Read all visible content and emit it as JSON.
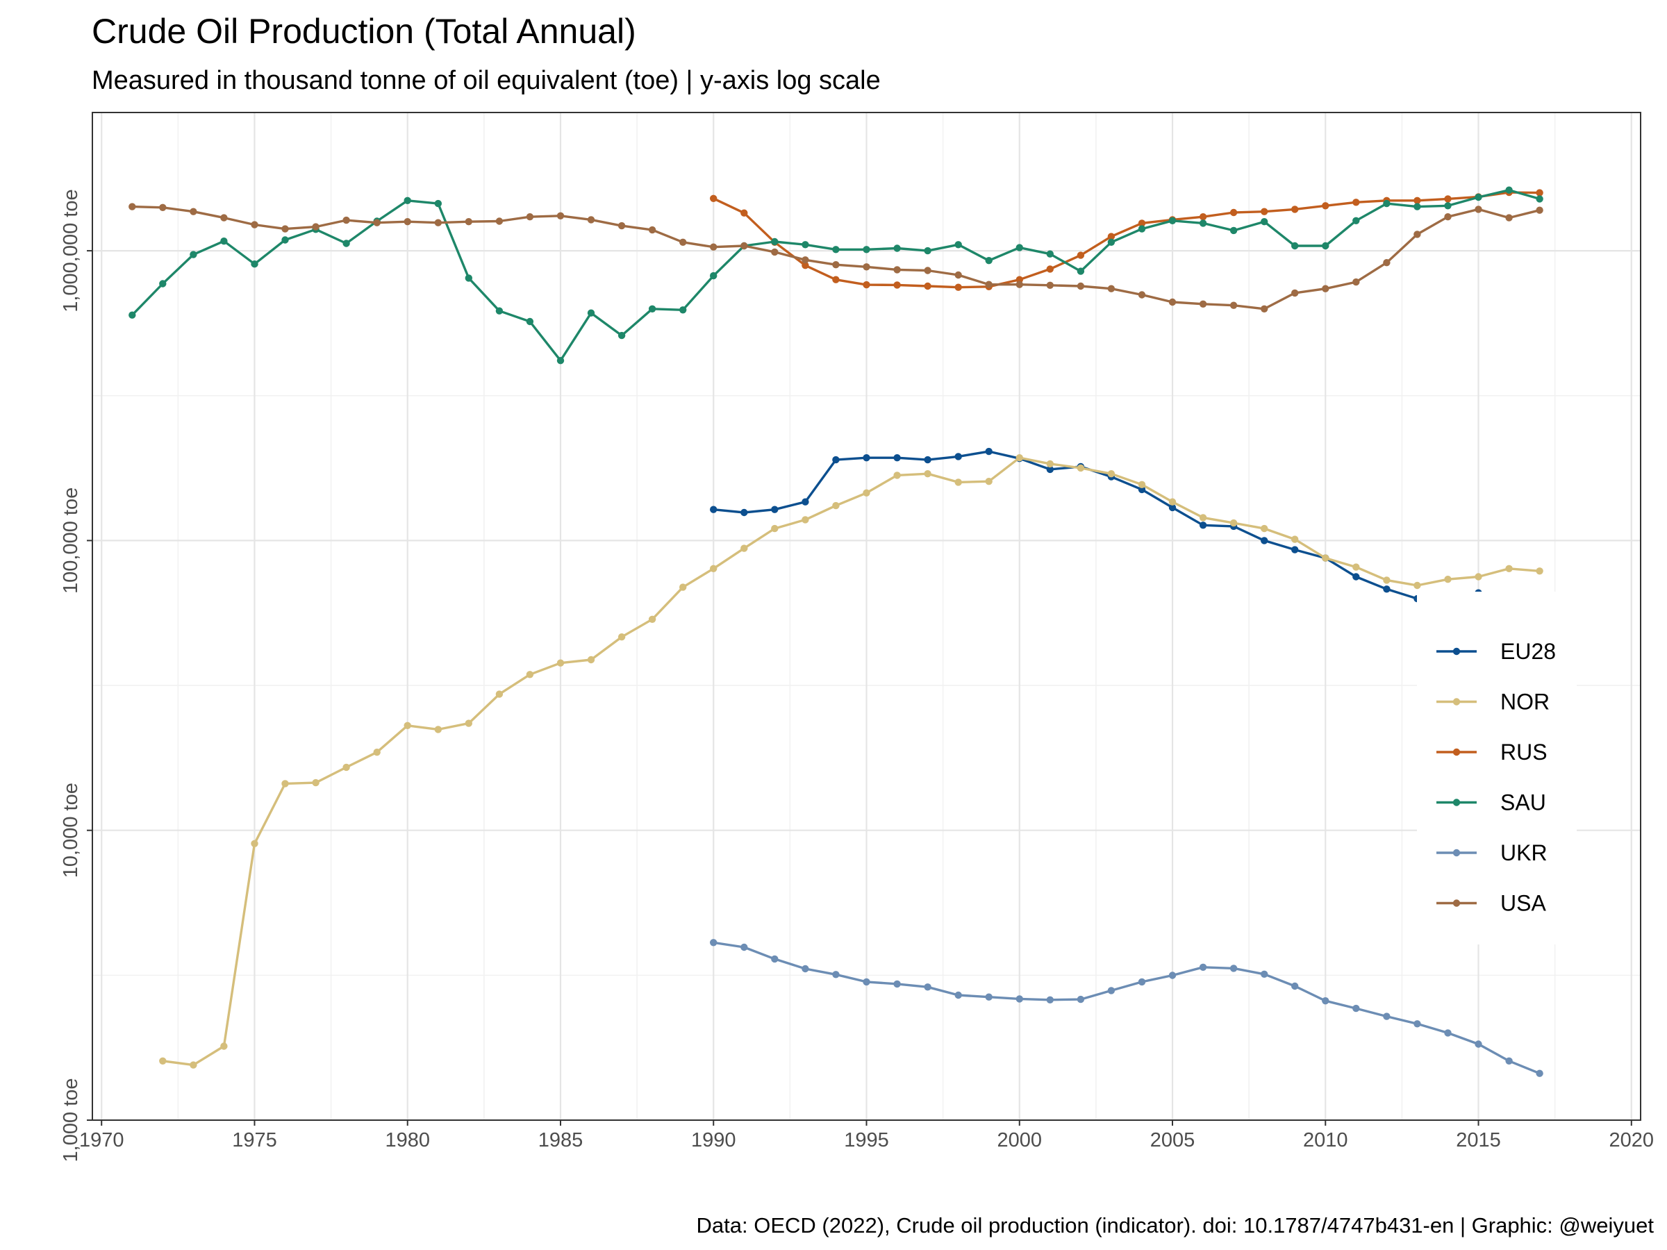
{
  "chart_data": {
    "type": "line",
    "title": "Crude Oil Production (Total Annual)",
    "subtitle": "Measured in thousand tonne of oil equivalent (toe) | y-axis log scale",
    "caption": "Data: OECD (2022), Crude oil production (indicator). doi: 10.1787/4747b431-en | Graphic: @weiyuet",
    "xlabel": "",
    "ylabel": "",
    "y_scale": "log10",
    "xlim": [
      1969.7,
      2020.3
    ],
    "ylim": [
      1000,
      3000000
    ],
    "x_ticks": [
      1970,
      1975,
      1980,
      1985,
      1990,
      1995,
      2000,
      2005,
      2010,
      2015,
      2020
    ],
    "x_tick_labels": [
      "1970",
      "1975",
      "1980",
      "1985",
      "1990",
      "1995",
      "2000",
      "2005",
      "2010",
      "2015",
      "2020"
    ],
    "y_ticks": [
      1000,
      10000,
      100000,
      1000000
    ],
    "y_tick_labels": [
      "1,000 toe",
      "10,000 toe",
      "100,000 toe",
      "1,000,000 toe"
    ],
    "grid": true,
    "legend_position": "right",
    "series": [
      {
        "name": "EU28",
        "color": "#0c4f8f",
        "x": [
          1990,
          1991,
          1992,
          1993,
          1994,
          1995,
          1996,
          1997,
          1998,
          1999,
          2000,
          2001,
          2002,
          2003,
          2004,
          2005,
          2006,
          2007,
          2008,
          2009,
          2010,
          2011,
          2012,
          2013,
          2014,
          2015,
          2016,
          2017
        ],
        "y": [
          128000,
          125000,
          128000,
          136000,
          190000,
          193000,
          193000,
          190000,
          195000,
          203000,
          192000,
          176000,
          180000,
          166000,
          150000,
          130000,
          113000,
          112000,
          100000,
          93000,
          87000,
          75000,
          68000,
          63000,
          62000,
          66000,
          64000,
          62500
        ]
      },
      {
        "name": "NOR",
        "color": "#d5be7b",
        "x": [
          1972,
          1973,
          1974,
          1975,
          1976,
          1977,
          1978,
          1979,
          1980,
          1981,
          1982,
          1983,
          1984,
          1985,
          1986,
          1987,
          1988,
          1989,
          1990,
          1991,
          1992,
          1993,
          1994,
          1995,
          1996,
          1997,
          1998,
          1999,
          2000,
          2001,
          2002,
          2003,
          2004,
          2005,
          2006,
          2007,
          2008,
          2009,
          2010,
          2011,
          2012,
          2013,
          2014,
          2015,
          2016,
          2017
        ],
        "y": [
          1600,
          1550,
          1800,
          9000,
          14500,
          14600,
          16500,
          18600,
          23000,
          22300,
          23400,
          29500,
          34500,
          37800,
          38800,
          46500,
          53500,
          69000,
          80000,
          94000,
          110000,
          118000,
          132000,
          146000,
          168000,
          170000,
          159000,
          160000,
          193000,
          184000,
          178000,
          170000,
          156000,
          136000,
          120000,
          115000,
          110000,
          101000,
          87000,
          81000,
          73000,
          70000,
          73500,
          75000,
          80000,
          78500
        ]
      },
      {
        "name": "RUS",
        "color": "#c25e1e",
        "x": [
          1990,
          1991,
          1992,
          1993,
          1994,
          1995,
          1996,
          1997,
          1998,
          1999,
          2000,
          2001,
          2002,
          2003,
          2004,
          2005,
          2006,
          2007,
          2008,
          2009,
          2010,
          2011,
          2012,
          2013,
          2014,
          2015,
          2016,
          2017
        ],
        "y": [
          1515000,
          1350000,
          1070000,
          890000,
          795000,
          763000,
          762000,
          755000,
          748000,
          752000,
          795000,
          865000,
          965000,
          1120000,
          1245000,
          1280000,
          1310000,
          1355000,
          1365000,
          1390000,
          1430000,
          1470000,
          1490000,
          1490000,
          1510000,
          1535000,
          1590000,
          1585000
        ]
      },
      {
        "name": "SAU",
        "color": "#1e8769",
        "x": [
          1971,
          1972,
          1973,
          1974,
          1975,
          1976,
          1977,
          1978,
          1979,
          1980,
          1981,
          1982,
          1983,
          1984,
          1985,
          1986,
          1987,
          1988,
          1989,
          1990,
          1991,
          1992,
          1993,
          1994,
          1995,
          1996,
          1997,
          1998,
          1999,
          2000,
          2001,
          2002,
          2003,
          2004,
          2005,
          2006,
          2007,
          2008,
          2009,
          2010,
          2011,
          2012,
          2013,
          2014,
          2015,
          2016,
          2017
        ],
        "y": [
          600000,
          770000,
          970000,
          1080000,
          900000,
          1090000,
          1185000,
          1060000,
          1265000,
          1490000,
          1455000,
          805000,
          620000,
          570000,
          418000,
          610000,
          510000,
          630000,
          625000,
          820000,
          1040000,
          1075000,
          1050000,
          1010000,
          1010000,
          1020000,
          1000000,
          1050000,
          925000,
          1025000,
          975000,
          850000,
          1070000,
          1190000,
          1270000,
          1245000,
          1175000,
          1260000,
          1040000,
          1040000,
          1270000,
          1455000,
          1420000,
          1430000,
          1530000,
          1620000,
          1510000
        ]
      },
      {
        "name": "UKR",
        "color": "#6c8db4",
        "x": [
          1990,
          1991,
          1992,
          1993,
          1994,
          1995,
          1996,
          1997,
          1998,
          1999,
          2000,
          2001,
          2002,
          2003,
          2004,
          2005,
          2006,
          2007,
          2008,
          2009,
          2010,
          2011,
          2012,
          2013,
          2014,
          2015,
          2016,
          2017
        ],
        "y": [
          4100,
          3950,
          3600,
          3330,
          3180,
          3000,
          2950,
          2880,
          2700,
          2660,
          2620,
          2600,
          2610,
          2800,
          3000,
          3160,
          3370,
          3340,
          3190,
          2900,
          2580,
          2430,
          2280,
          2150,
          2000,
          1830,
          1600,
          1450
        ]
      },
      {
        "name": "USA",
        "color": "#9e6b44",
        "x": [
          1971,
          1972,
          1973,
          1974,
          1975,
          1976,
          1977,
          1978,
          1979,
          1980,
          1981,
          1982,
          1983,
          1984,
          1985,
          1986,
          1987,
          1988,
          1989,
          1990,
          1991,
          1992,
          1993,
          1994,
          1995,
          1996,
          1997,
          1998,
          1999,
          2000,
          2001,
          2002,
          2003,
          2004,
          2005,
          2006,
          2007,
          2008,
          2009,
          2010,
          2011,
          2012,
          2013,
          2014,
          2015,
          2016,
          2017
        ],
        "y": [
          1420000,
          1410000,
          1365000,
          1300000,
          1230000,
          1190000,
          1210000,
          1275000,
          1250000,
          1260000,
          1250000,
          1260000,
          1265000,
          1310000,
          1320000,
          1280000,
          1220000,
          1180000,
          1070000,
          1030000,
          1040000,
          990000,
          930000,
          895000,
          880000,
          860000,
          855000,
          825000,
          765000,
          765000,
          760000,
          755000,
          740000,
          705000,
          665000,
          655000,
          648000,
          630000,
          715000,
          740000,
          780000,
          910000,
          1140000,
          1310000,
          1390000,
          1300000,
          1380000
        ]
      }
    ]
  }
}
